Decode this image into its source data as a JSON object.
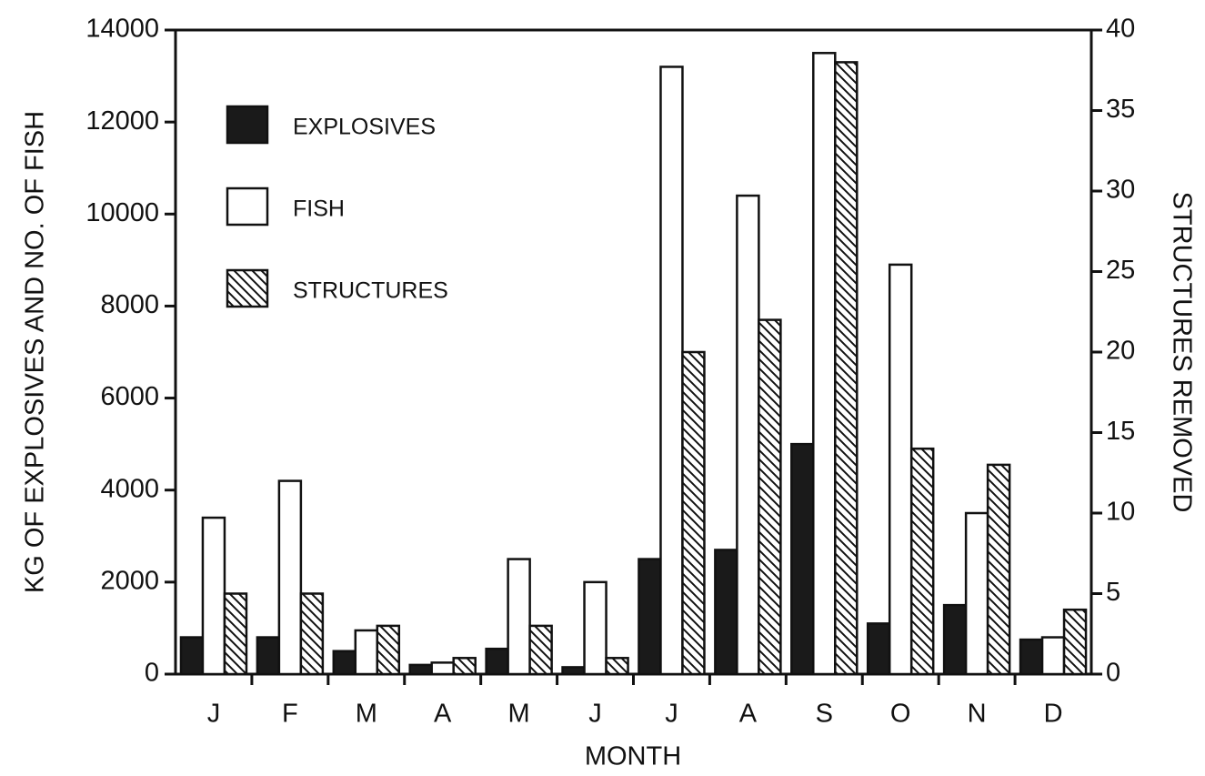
{
  "chart_data": {
    "type": "bar",
    "categories": [
      "J",
      "F",
      "M",
      "A",
      "M",
      "J",
      "J",
      "A",
      "S",
      "O",
      "N",
      "D"
    ],
    "series": [
      {
        "name": "EXPLOSIVES",
        "color": "#1a1a1a",
        "values": [
          800,
          800,
          500,
          200,
          550,
          150,
          2500,
          2700,
          5000,
          1100,
          1500,
          750
        ]
      },
      {
        "name": "FISH",
        "color": "#ffffff",
        "values": [
          3400,
          4200,
          950,
          250,
          2500,
          2000,
          13200,
          10400,
          13500,
          8900,
          3500,
          800
        ]
      },
      {
        "name": "STRUCTURES",
        "color": "#ffffff",
        "hatch": true,
        "axis": "y2",
        "values": [
          5,
          5,
          3,
          1,
          3,
          1,
          20,
          22,
          38,
          14,
          13,
          4
        ]
      }
    ],
    "xlabel": "MONTH",
    "ylabel": "KG OF EXPLOSIVES AND NO. OF FISH",
    "y2label": "STRUCTURES REMOVED",
    "ylim": [
      0,
      14000
    ],
    "yticks": [
      0,
      2000,
      4000,
      6000,
      8000,
      10000,
      12000,
      14000
    ],
    "y2lim": [
      0,
      40
    ],
    "y2ticks": [
      0,
      5,
      10,
      15,
      20,
      25,
      30,
      35,
      40
    ],
    "legend": "upper left"
  }
}
